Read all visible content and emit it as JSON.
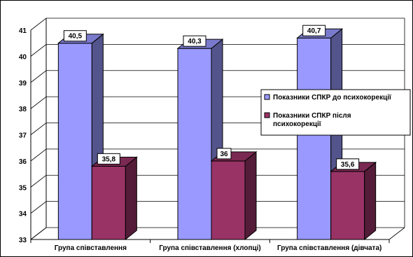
{
  "chart_data": {
    "type": "bar",
    "categories": [
      "Група співставлення",
      "Група співставлення (хлопці)",
      "Група співставлення (дівчата)"
    ],
    "series": [
      {
        "name": "Показники СПКР до психокорекції",
        "values": [
          40.5,
          40.3,
          40.7
        ],
        "color": "#9999ff"
      },
      {
        "name": "Показники СПКР після психокорекції",
        "values": [
          35.8,
          36,
          35.6
        ],
        "color": "#993366"
      }
    ],
    "ylim": [
      33,
      41
    ],
    "yticks": [
      33,
      34,
      35,
      36,
      37,
      38,
      39,
      40,
      41
    ],
    "title": "",
    "xlabel": "",
    "ylabel": "",
    "grid": true,
    "legend": "right",
    "style": "3d"
  }
}
